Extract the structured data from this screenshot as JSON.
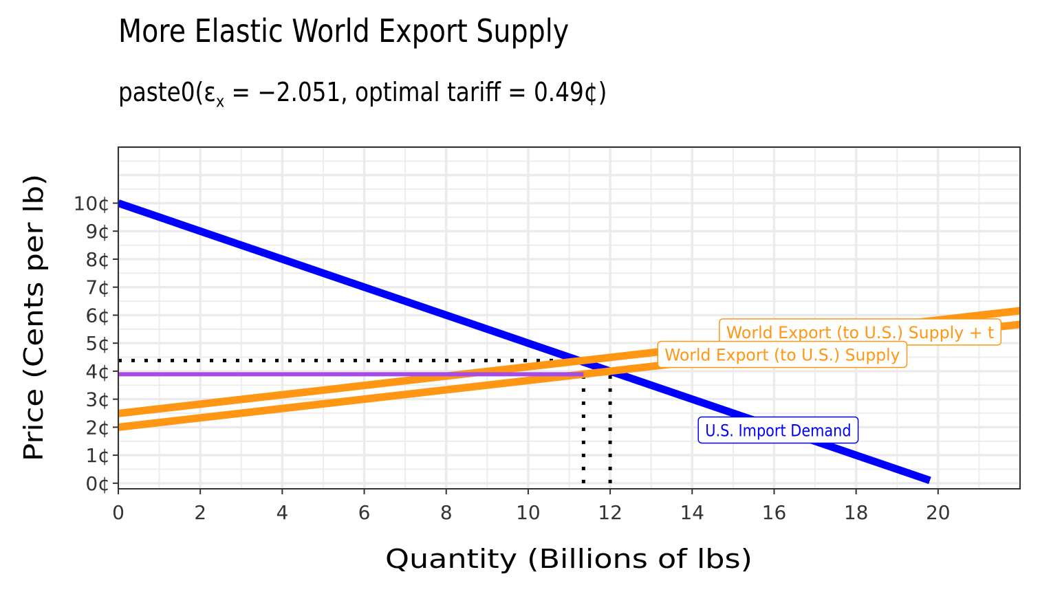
{
  "chart_data": {
    "type": "line",
    "title": "More Elastic World Export Supply",
    "subtitle": {
      "prefix": "paste0(",
      "symbol": "ε",
      "subscript": "x",
      "rest": " = −2.051,  optimal tariff = 0.49¢",
      "suffix": ")"
    },
    "xlabel": "Quantity (Billions of lbs)",
    "ylabel": "Price (Cents per lb)",
    "xlim": [
      0,
      22
    ],
    "ylim": [
      -0.2,
      12
    ],
    "x_ticks": [
      0,
      2,
      4,
      6,
      8,
      10,
      12,
      14,
      16,
      18,
      20
    ],
    "y_ticks": [
      0,
      1,
      2,
      3,
      4,
      5,
      6,
      7,
      8,
      9,
      10
    ],
    "y_tick_labels": [
      "0¢",
      "1¢",
      "2¢",
      "3¢",
      "4¢",
      "5¢",
      "6¢",
      "7¢",
      "8¢",
      "9¢",
      "10¢"
    ],
    "grid": true,
    "series": [
      {
        "name": "U.S. Import Demand",
        "color": "#0000ff",
        "x": [
          0,
          19.8
        ],
        "y": [
          10,
          0.1
        ]
      },
      {
        "name": "World Export (to U.S.) Supply",
        "color": "#ff9614",
        "x": [
          0,
          22
        ],
        "y": [
          2,
          5.67
        ]
      },
      {
        "name": "World Export (to U.S.) Supply + t",
        "color": "#ff9614",
        "x": [
          0,
          22
        ],
        "y": [
          2.49,
          6.16
        ]
      },
      {
        "name": "",
        "color": "#a64ae8",
        "x": [
          0,
          11.35
        ],
        "y": [
          3.89,
          3.89
        ]
      }
    ],
    "reference_lines": [
      {
        "style": "dotted",
        "x": [
          0,
          11.35
        ],
        "y": [
          4.38,
          4.38
        ]
      },
      {
        "style": "dotted",
        "x": [
          0,
          11.35
        ],
        "y": [
          3.89,
          3.89
        ]
      },
      {
        "style": "dotted",
        "x": [
          11.35,
          11.35
        ],
        "y": [
          0,
          4.38
        ]
      },
      {
        "style": "dotted",
        "x": [
          12,
          12
        ],
        "y": [
          0,
          4
        ]
      }
    ],
    "annotations": [
      {
        "text": "World Export (to U.S.) Supply + t",
        "x": 18.1,
        "y": 5.4,
        "color": "#ff9614"
      },
      {
        "text": "World Export (to U.S.) Supply",
        "x": 16.2,
        "y": 4.6,
        "color": "#ff9614"
      },
      {
        "text": "U.S. Import Demand",
        "x": 16.1,
        "y": 1.9,
        "color": "#0000ff"
      }
    ]
  }
}
